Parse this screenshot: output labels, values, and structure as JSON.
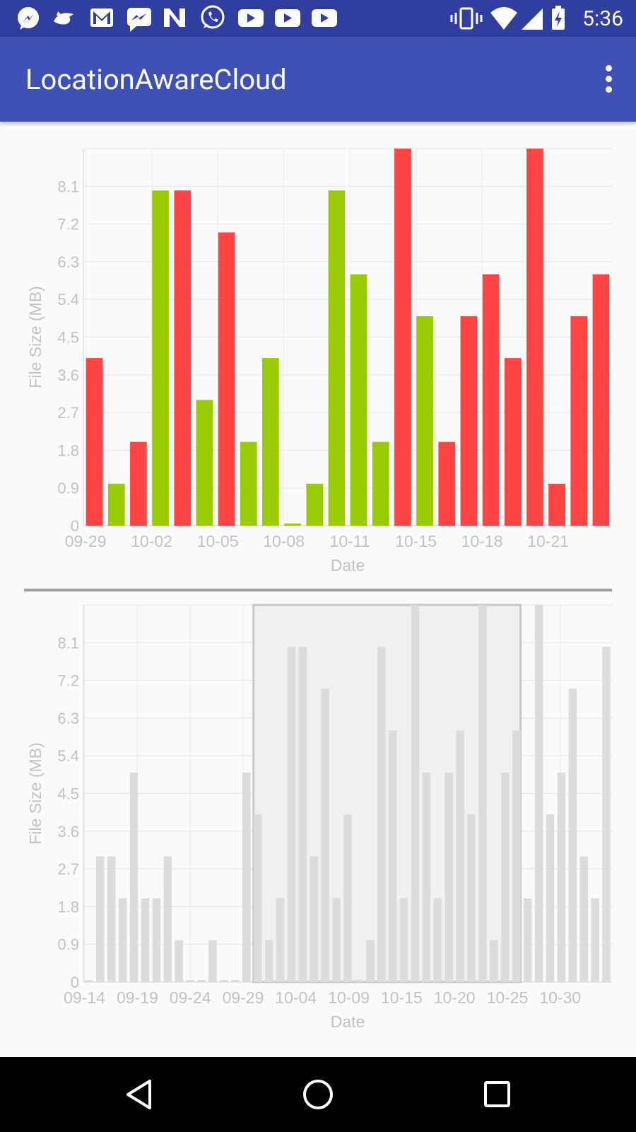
{
  "status_bar": {
    "time": "5:36",
    "icons": [
      "messenger-icon",
      "bird-icon",
      "gmail-icon",
      "chat-icon",
      "n-app-icon",
      "whatsapp-icon",
      "youtube-icon",
      "youtube-icon",
      "youtube-icon",
      "vibrate-icon",
      "wifi-icon",
      "cell-signal-icon",
      "battery-charging-icon"
    ]
  },
  "app_bar": {
    "title": "LocationAwareCloud",
    "menu_icon": "overflow-menu-icon"
  },
  "colors": {
    "primary": "#3f51b5",
    "primary_dark": "#303f9f",
    "bar_green": "#99cc00",
    "bar_red": "#ff4444",
    "preview_bar": "#dcdcdc"
  },
  "chart_data": [
    {
      "type": "bar",
      "xlabel": "Date",
      "ylabel": "File Size (MB)",
      "ylim": [
        0,
        9
      ],
      "y_ticks": [
        "0",
        "0.9",
        "1.8",
        "2.7",
        "3.6",
        "4.5",
        "5.4",
        "6.3",
        "7.2",
        "8.1"
      ],
      "x_tick_labels": [
        "09-29",
        "10-02",
        "10-05",
        "10-08",
        "10-11",
        "10-15",
        "10-18",
        "10-21"
      ],
      "grid": true,
      "legend": "none",
      "values": [
        4,
        1,
        2,
        8,
        8,
        3,
        7,
        2,
        4,
        0.05,
        1,
        8,
        6,
        2,
        9,
        5,
        2,
        5,
        6,
        4,
        9,
        1,
        5,
        6
      ],
      "bar_colors": [
        "red",
        "green",
        "red",
        "green",
        "red",
        "green",
        "red",
        "green",
        "green",
        "green",
        "green",
        "green",
        "green",
        "green",
        "red",
        "green",
        "red",
        "red",
        "red",
        "red",
        "red",
        "red",
        "red",
        "red"
      ]
    },
    {
      "type": "bar",
      "xlabel": "Date",
      "ylabel": "File Size (MB)",
      "ylim": [
        0,
        9
      ],
      "y_ticks": [
        "0",
        "0.9",
        "1.8",
        "2.7",
        "3.6",
        "4.5",
        "5.4",
        "6.3",
        "7.2",
        "8.1"
      ],
      "x_tick_labels": [
        "09-14",
        "09-19",
        "09-24",
        "09-29",
        "10-04",
        "10-09",
        "10-15",
        "10-20",
        "10-25",
        "10-30"
      ],
      "grid": true,
      "legend": "none",
      "values": [
        0.05,
        3,
        3,
        2,
        5,
        2,
        2,
        3,
        1,
        0.05,
        0.05,
        1,
        0.05,
        0.05,
        5,
        4,
        1,
        2,
        8,
        8,
        3,
        7,
        2,
        4,
        0.05,
        1,
        8,
        6,
        2,
        9,
        5,
        2,
        5,
        6,
        4,
        9,
        1,
        5,
        6,
        2,
        9,
        4,
        5,
        7,
        3,
        2,
        8
      ],
      "selection_window": [
        "09-29",
        "10-22"
      ]
    }
  ]
}
